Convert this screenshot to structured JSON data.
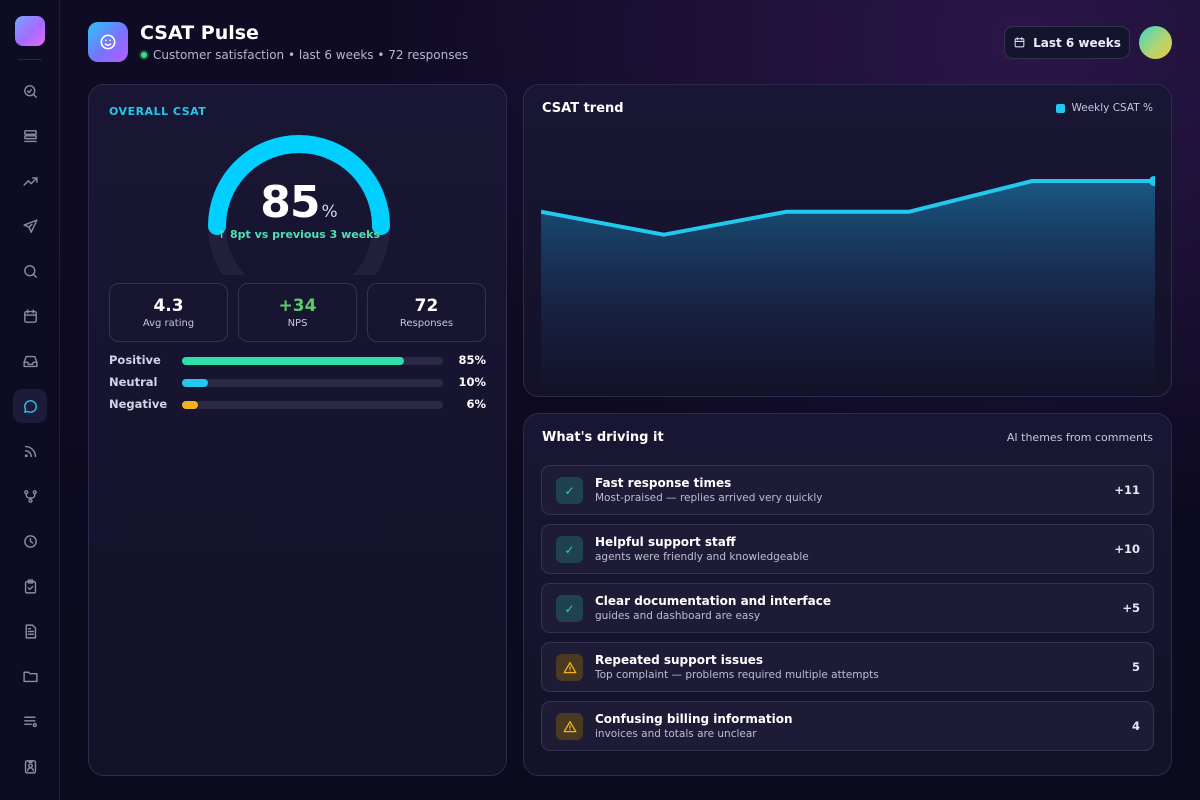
{
  "header": {
    "title": "CSAT Pulse",
    "subtitle": "Customer satisfaction • last 6 weeks • 72 responses",
    "range_button": "Last 6 weeks"
  },
  "sidebar": {
    "items": [
      {
        "icon": "search-analytics-icon"
      },
      {
        "icon": "database-icon"
      },
      {
        "icon": "trending-up-icon"
      },
      {
        "icon": "send-icon"
      },
      {
        "icon": "search-icon"
      },
      {
        "icon": "calendar-icon"
      },
      {
        "icon": "inbox-icon"
      },
      {
        "icon": "chat-bubble-icon",
        "active": true
      },
      {
        "icon": "rss-icon"
      },
      {
        "icon": "git-branch-icon"
      },
      {
        "icon": "clock-icon"
      },
      {
        "icon": "clipboard-check-icon"
      },
      {
        "icon": "document-icon"
      },
      {
        "icon": "folder-icon"
      },
      {
        "icon": "list-filter-icon"
      },
      {
        "icon": "badge-user-icon"
      }
    ]
  },
  "overall": {
    "label": "OVERALL CSAT",
    "score": "85",
    "score_unit": "%",
    "score_value": 85,
    "delta": "↑ 8pt vs previous 3 weeks",
    "stats": [
      {
        "value": "4.3",
        "label": "Avg rating"
      },
      {
        "value": "+34",
        "label": "NPS"
      },
      {
        "value": "72",
        "label": "Responses"
      }
    ],
    "sentiment": [
      {
        "label": "Positive",
        "pct": "85%",
        "value": 85,
        "color": "#2ee0a8"
      },
      {
        "label": "Neutral",
        "pct": "10%",
        "value": 10,
        "color": "#22c8ee"
      },
      {
        "label": "Negative",
        "pct": "6%",
        "value": 6,
        "color": "#f2b21c"
      }
    ],
    "colors": {
      "gauge": "#00cfff",
      "gauge_track": "#22203c"
    }
  },
  "trend": {
    "title": "CSAT trend",
    "legend": "Weekly CSAT %"
  },
  "chart_data": {
    "type": "area",
    "title": "CSAT trend",
    "series": [
      {
        "name": "Weekly CSAT %",
        "values": [
          80,
          77,
          80,
          80,
          84,
          84
        ]
      }
    ],
    "ylim": [
      60,
      90
    ],
    "color": "#22c8ee",
    "grid": false
  },
  "drivers": {
    "title": "What's driving it",
    "subtitle": "AI themes from comments",
    "items": [
      {
        "title": "Fast response times",
        "desc": "Most-praised — replies arrived very quickly",
        "count": "+11",
        "kind": "pos"
      },
      {
        "title": "Helpful support staff",
        "desc": "agents were friendly and knowledgeable",
        "count": "+10",
        "kind": "pos"
      },
      {
        "title": "Clear documentation and interface",
        "desc": "guides and dashboard are easy",
        "count": "+5",
        "kind": "pos"
      },
      {
        "title": "Repeated support issues",
        "desc": "Top complaint — problems required multiple attempts",
        "count": "5",
        "kind": "neg"
      },
      {
        "title": "Confusing billing information",
        "desc": "invoices and totals are unclear",
        "count": "4",
        "kind": "neg"
      }
    ]
  }
}
